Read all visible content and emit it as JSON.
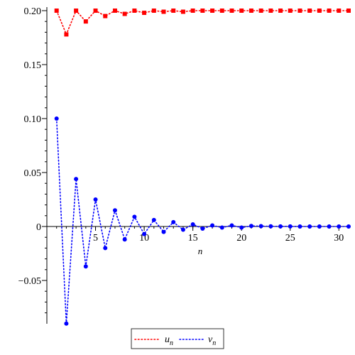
{
  "chart_data": {
    "type": "line",
    "title": "",
    "xlabel": "n",
    "ylabel": "",
    "xlim": [
      0,
      31
    ],
    "ylim": [
      -0.09,
      0.2
    ],
    "x_ticks": [
      5,
      10,
      15,
      20,
      25,
      30
    ],
    "x_tick_labels": [
      "5",
      "10",
      "15",
      "20",
      "25",
      "30"
    ],
    "y_ticks": [
      -0.05,
      0,
      0.05,
      0.1,
      0.15,
      0.2
    ],
    "y_tick_labels": [
      "−0.05",
      "0",
      "0.05",
      "0.10",
      "0.15",
      "0.20"
    ],
    "grid": false,
    "legend_placement": "bottom",
    "series": [
      {
        "name": "u",
        "subscript": "n",
        "color": "#ff0000",
        "marker": "square",
        "line_style": "dotted",
        "x": [
          1,
          2,
          3,
          4,
          5,
          6,
          7,
          8,
          9,
          10,
          11,
          12,
          13,
          14,
          15,
          16,
          17,
          18,
          19,
          20,
          21,
          22,
          23,
          24,
          25,
          26,
          27,
          28,
          29,
          30,
          31
        ],
        "values": [
          0.2,
          0.178,
          0.2,
          0.19,
          0.2,
          0.195,
          0.2,
          0.197,
          0.2,
          0.198,
          0.2,
          0.199,
          0.2,
          0.199,
          0.2,
          0.2,
          0.2,
          0.2,
          0.2,
          0.2,
          0.2,
          0.2,
          0.2,
          0.2,
          0.2,
          0.2,
          0.2,
          0.2,
          0.2,
          0.2,
          0.2
        ]
      },
      {
        "name": "v",
        "subscript": "n",
        "color": "#0000ff",
        "marker": "circle",
        "line_style": "dotted",
        "x": [
          1,
          2,
          3,
          4,
          5,
          6,
          7,
          8,
          9,
          10,
          11,
          12,
          13,
          14,
          15,
          16,
          17,
          18,
          19,
          20,
          21,
          22,
          23,
          24,
          25,
          26,
          27,
          28,
          29,
          30,
          31
        ],
        "values": [
          0.1,
          -0.09,
          0.044,
          -0.037,
          0.025,
          -0.02,
          0.015,
          -0.012,
          0.009,
          -0.007,
          0.006,
          -0.005,
          0.004,
          -0.003,
          0.002,
          -0.002,
          0.001,
          -0.001,
          0.001,
          -0.001,
          0.0005,
          0.0003,
          0.0002,
          0.0001,
          0.0001,
          0,
          0,
          0,
          0,
          0,
          0
        ]
      }
    ]
  }
}
